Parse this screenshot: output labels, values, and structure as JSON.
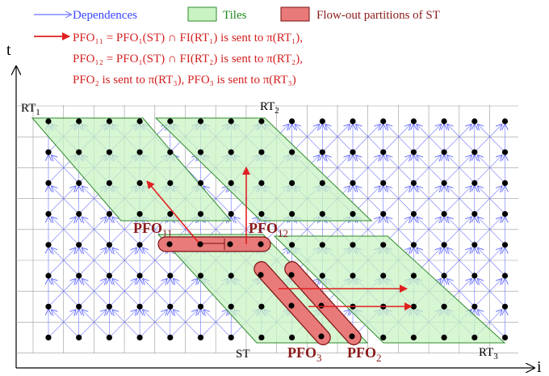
{
  "legend": {
    "dependences": "Dependences",
    "tiles": "Tiles",
    "flow_out": "Flow-out partitions of ST"
  },
  "notes": {
    "line1": "PFO₁₁ = PFO₁(ST) ∩ FI(RT₁) is sent to π(RT₁),",
    "line2": "PFO₁₂ = PFO₁(ST) ∩ FI(RT₂) is sent to π(RT₂),",
    "line3": "PFO₂ is sent to π(RT₃), PFO₃ is sent to π(RT₃)"
  },
  "axes": {
    "t": "t",
    "i": "i"
  },
  "tiles": {
    "rt1": {
      "base": "RT",
      "sub": "1"
    },
    "rt2": {
      "base": "RT",
      "sub": "2"
    },
    "rt3": {
      "base": "RT",
      "sub": "3"
    },
    "st": "ST"
  },
  "partitions": {
    "pfo11": {
      "base": "PFO",
      "sub": "11"
    },
    "pfo12": {
      "base": "PFO",
      "sub": "12"
    },
    "pfo3": {
      "base": "PFO",
      "sub": "3"
    },
    "pfo2": {
      "base": "PFO",
      "sub": "2"
    }
  },
  "colors": {
    "dependence": "#6b72ff",
    "tile_fill": "#c9f3c3",
    "tile_stroke": "#2e8b2e",
    "partition_fill": "#e97a7a",
    "partition_stroke": "#7a1010",
    "send_arrow": "#e02020",
    "grid": "#9a9a9a",
    "point": "#000000"
  }
}
